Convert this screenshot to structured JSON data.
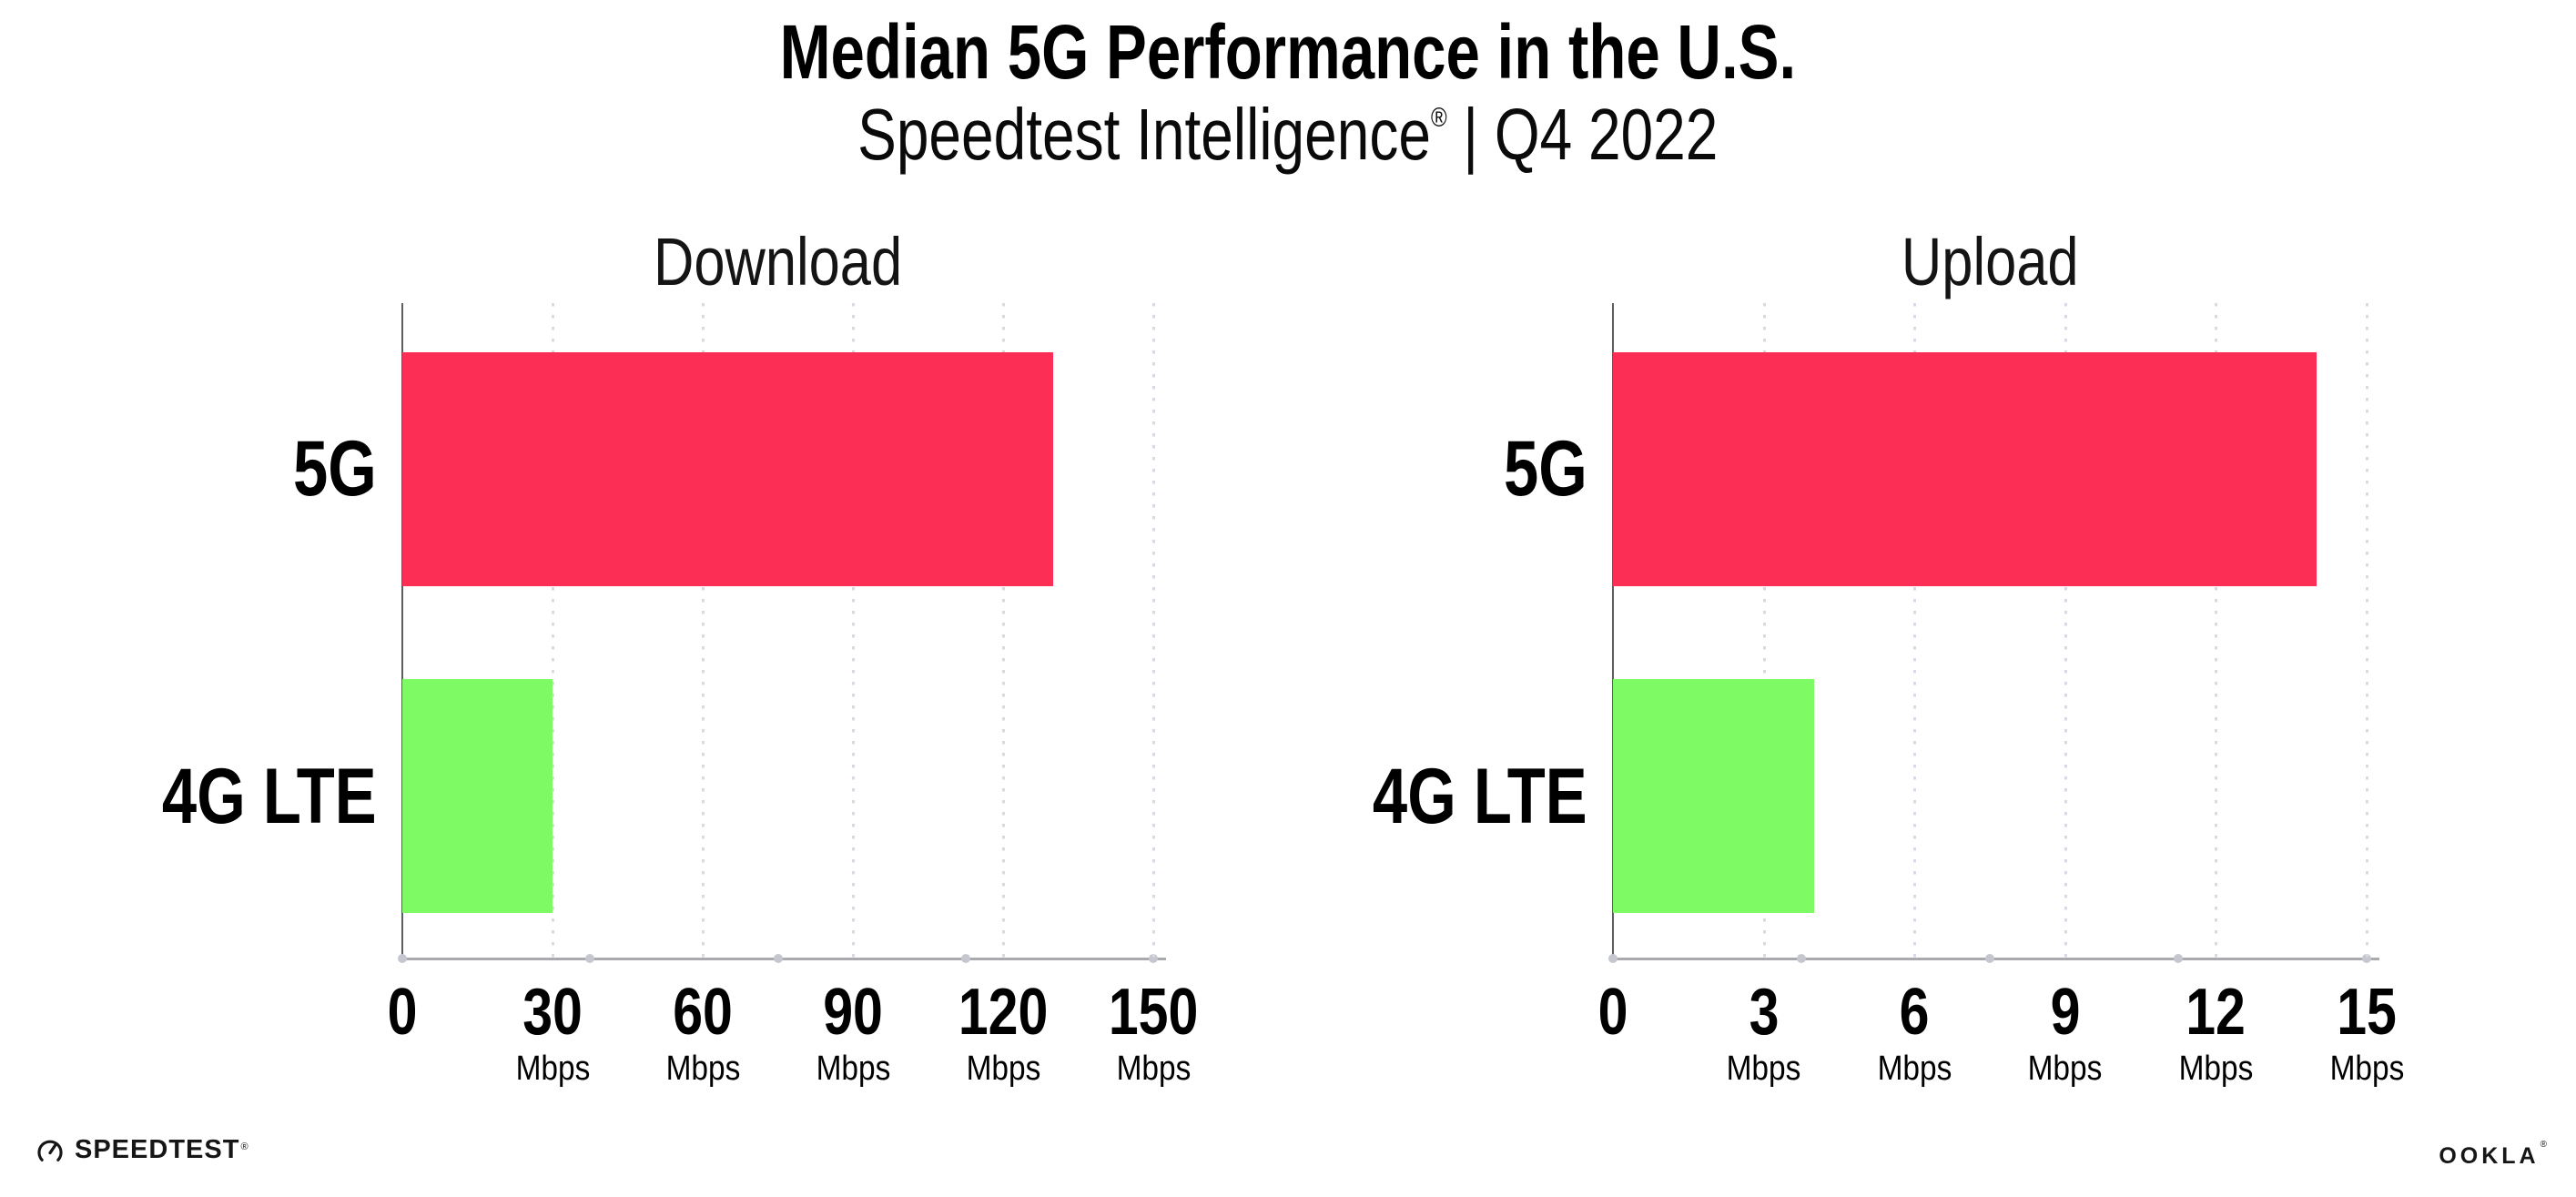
{
  "header": {
    "title": "Median 5G Performance in the U.S.",
    "subtitle_brand": "Speedtest Intelligence",
    "subtitle_reg": "®",
    "subtitle_rest": " | Q4 2022"
  },
  "colors": {
    "bar_5g": "#FC2E56",
    "bar_4g_lte": "#7DFA64",
    "axis_line": "#a9a9af",
    "y_axis_line": "#5c5c63",
    "gridline_dot": "#d9d9e3",
    "axis_tick_dot": "#c6c6d0"
  },
  "chart_data": [
    {
      "type": "bar",
      "orientation": "horizontal",
      "title": "Download",
      "categories": [
        "5G",
        "4G LTE"
      ],
      "values": [
        130,
        30
      ],
      "unit": "Mbps",
      "xlim": [
        0,
        150
      ],
      "xticks": [
        0,
        30,
        60,
        90,
        120,
        150
      ],
      "grid": "vertical-dotted",
      "legend": "none",
      "bar_colors": [
        "#FC2E56",
        "#7DFA64"
      ]
    },
    {
      "type": "bar",
      "orientation": "horizontal",
      "title": "Upload",
      "categories": [
        "5G",
        "4G LTE"
      ],
      "values": [
        14,
        4
      ],
      "unit": "Mbps",
      "xlim": [
        0,
        15
      ],
      "xticks": [
        0,
        3,
        6,
        9,
        12,
        15
      ],
      "grid": "vertical-dotted",
      "legend": "none",
      "bar_colors": [
        "#FC2E56",
        "#7DFA64"
      ]
    }
  ],
  "footer": {
    "speedtest_label": "SPEEDTEST",
    "speedtest_mark": "®",
    "ookla_label": "OOKLA",
    "ookla_mark": "®"
  }
}
